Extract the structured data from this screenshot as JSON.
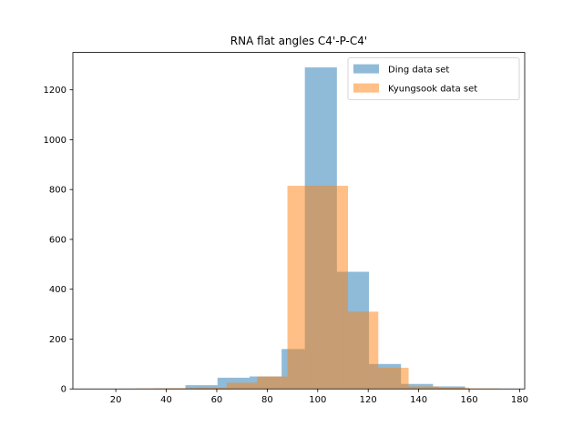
{
  "chart_data": {
    "type": "bar",
    "title": "RNA flat angles C4'-P-C4'",
    "xlabel": "",
    "ylabel": "",
    "xlim": [
      3,
      182
    ],
    "ylim": [
      0,
      1350
    ],
    "xticks": [
      20,
      40,
      60,
      80,
      100,
      120,
      140,
      160,
      180
    ],
    "yticks": [
      0,
      200,
      400,
      600,
      800,
      1000,
      1200
    ],
    "legend_position": "top-right",
    "grid": false,
    "series": [
      {
        "name": "Ding data set",
        "color": "#1f77b4",
        "opacity": 0.5,
        "bins": [
          {
            "x0": 9.5,
            "x1": 22.2,
            "value": 0
          },
          {
            "x0": 22.2,
            "x1": 34.9,
            "value": 1
          },
          {
            "x0": 34.9,
            "x1": 47.6,
            "value": 2
          },
          {
            "x0": 47.6,
            "x1": 60.3,
            "value": 15
          },
          {
            "x0": 60.3,
            "x1": 73.0,
            "value": 45
          },
          {
            "x0": 73.0,
            "x1": 85.7,
            "value": 50
          },
          {
            "x0": 85.7,
            "x1": 94.9,
            "value": 160
          },
          {
            "x0": 94.9,
            "x1": 107.6,
            "value": 1290
          },
          {
            "x0": 107.6,
            "x1": 120.3,
            "value": 470
          },
          {
            "x0": 120.3,
            "x1": 133.0,
            "value": 100
          },
          {
            "x0": 133.0,
            "x1": 145.7,
            "value": 20
          },
          {
            "x0": 145.7,
            "x1": 158.4,
            "value": 10
          }
        ]
      },
      {
        "name": "Kyungsook data set",
        "color": "#ff7f0e",
        "opacity": 0.5,
        "bins": [
          {
            "x0": 28.0,
            "x1": 40.0,
            "value": 2
          },
          {
            "x0": 40.0,
            "x1": 52.0,
            "value": 3
          },
          {
            "x0": 52.0,
            "x1": 64.0,
            "value": 5
          },
          {
            "x0": 64.0,
            "x1": 76.0,
            "value": 25
          },
          {
            "x0": 76.0,
            "x1": 88.0,
            "value": 50
          },
          {
            "x0": 88.0,
            "x1": 100.0,
            "value": 815
          },
          {
            "x0": 100.0,
            "x1": 112.0,
            "value": 815
          },
          {
            "x0": 112.0,
            "x1": 124.0,
            "value": 310
          },
          {
            "x0": 124.0,
            "x1": 136.0,
            "value": 85
          },
          {
            "x0": 136.0,
            "x1": 148.0,
            "value": 10
          },
          {
            "x0": 148.0,
            "x1": 160.0,
            "value": 5
          },
          {
            "x0": 160.0,
            "x1": 172.0,
            "value": 2
          }
        ]
      }
    ]
  }
}
